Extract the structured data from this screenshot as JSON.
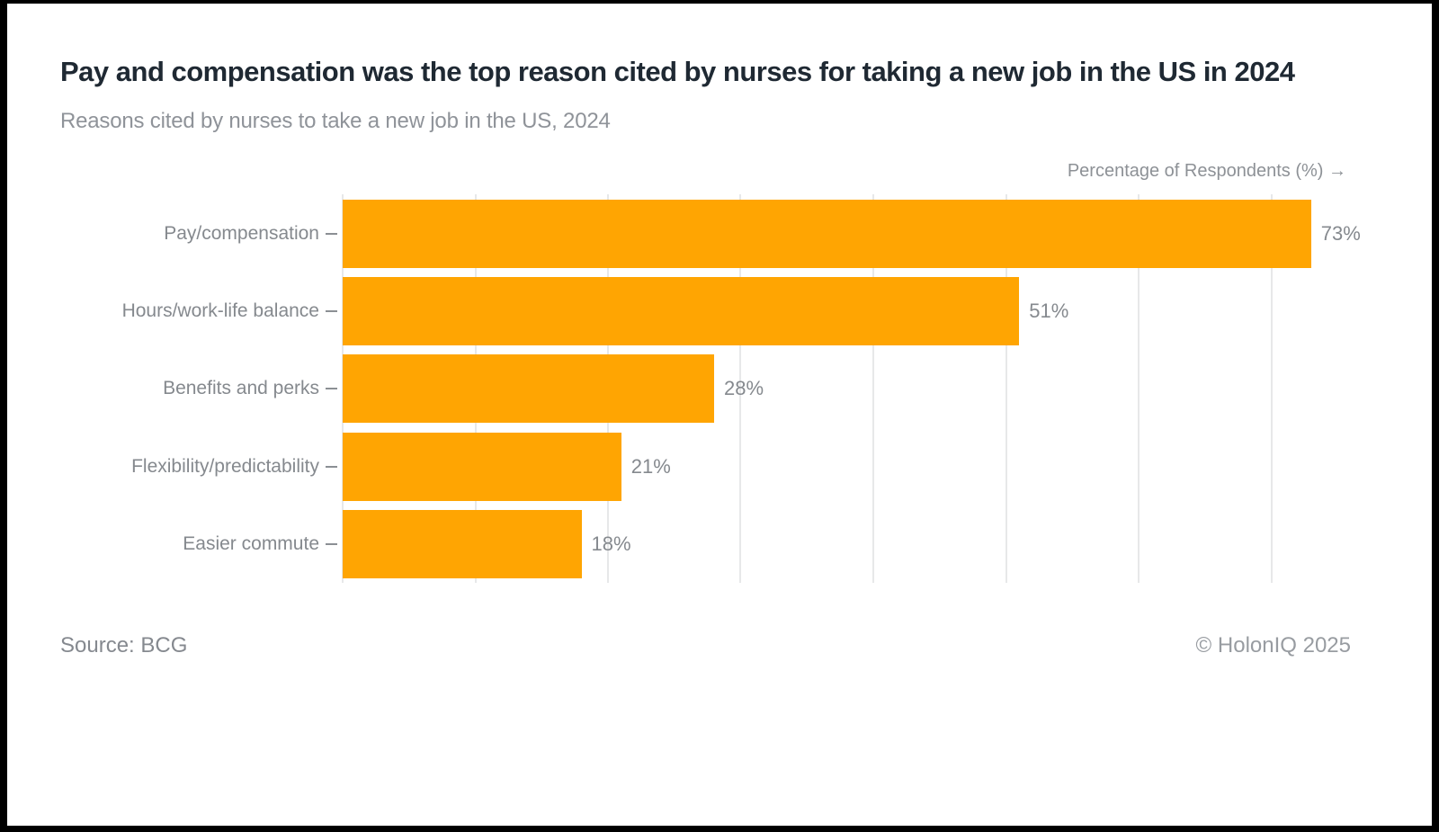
{
  "frame": {
    "background": "#ffffff",
    "border_color": "#000000"
  },
  "header": {
    "title": "Pay and compensation was the top reason cited by nurses for taking a new job in the US in 2024",
    "subtitle": "Reasons cited by nurses to take a new job in the US, 2024"
  },
  "chart_data": {
    "type": "bar",
    "orientation": "horizontal",
    "title": "Pay and compensation was the top reason cited by nurses for taking a new job in the US in 2024",
    "subtitle": "Reasons cited by nurses to take a new job in the US, 2024",
    "xlabel": "Percentage of Respondents (%) →",
    "ylabel": "",
    "categories": [
      "Pay/compensation",
      "Hours/work-life balance",
      "Benefits and perks",
      "Flexibility/predictability",
      "Easier commute"
    ],
    "values": [
      73,
      51,
      28,
      21,
      18
    ],
    "value_labels": [
      "73%",
      "51%",
      "28%",
      "21%",
      "18%"
    ],
    "xlim": [
      0,
      76
    ],
    "gridline_ticks": [
      0,
      10,
      20,
      30,
      40,
      50,
      60,
      70
    ],
    "grid": true,
    "legend_position": "none",
    "bar_color": "#FFA502",
    "gridline_color": "#e7e8e9"
  },
  "footer": {
    "source": "Source: BCG",
    "copyright": "© HolonIQ 2025"
  }
}
